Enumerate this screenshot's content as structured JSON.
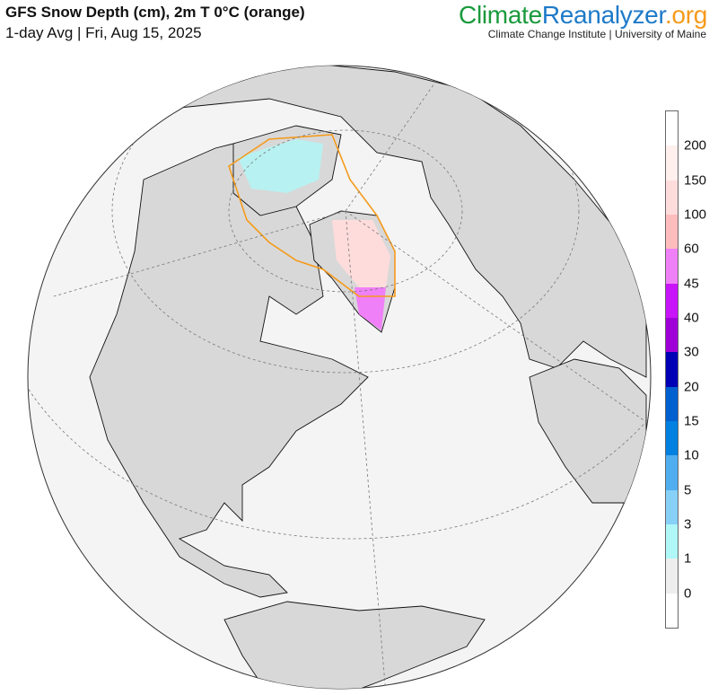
{
  "header": {
    "title": "GFS Snow Depth (cm), 2m T 0°C (orange)",
    "subtitle": "1-day Avg | Fri, Aug 15, 2025"
  },
  "brand": {
    "part1": "Climate",
    "part2": "Reanalyzer",
    ".org": ".org",
    "tld": ".org",
    "institution": "Climate Change Institute | University of Maine"
  },
  "legend": {
    "labels": [
      "200",
      "150",
      "100",
      "60",
      "45",
      "40",
      "30",
      "20",
      "15",
      "10",
      "5",
      "3",
      "1",
      "0"
    ],
    "colors": [
      "#ffffff",
      "#fff0ee",
      "#ffdcdc",
      "#ffbcbc",
      "#f080f8",
      "#c814f8",
      "#a000d8",
      "#0000b4",
      "#0060d0",
      "#0080e0",
      "#50aef0",
      "#87d0f8",
      "#b0f8f8",
      "#eeeeee",
      "#ffffff"
    ]
  },
  "map": {
    "ocean_color": "#f4f4f4",
    "land_color": "#d8d8d8",
    "contour_color": "#f59a1a"
  }
}
